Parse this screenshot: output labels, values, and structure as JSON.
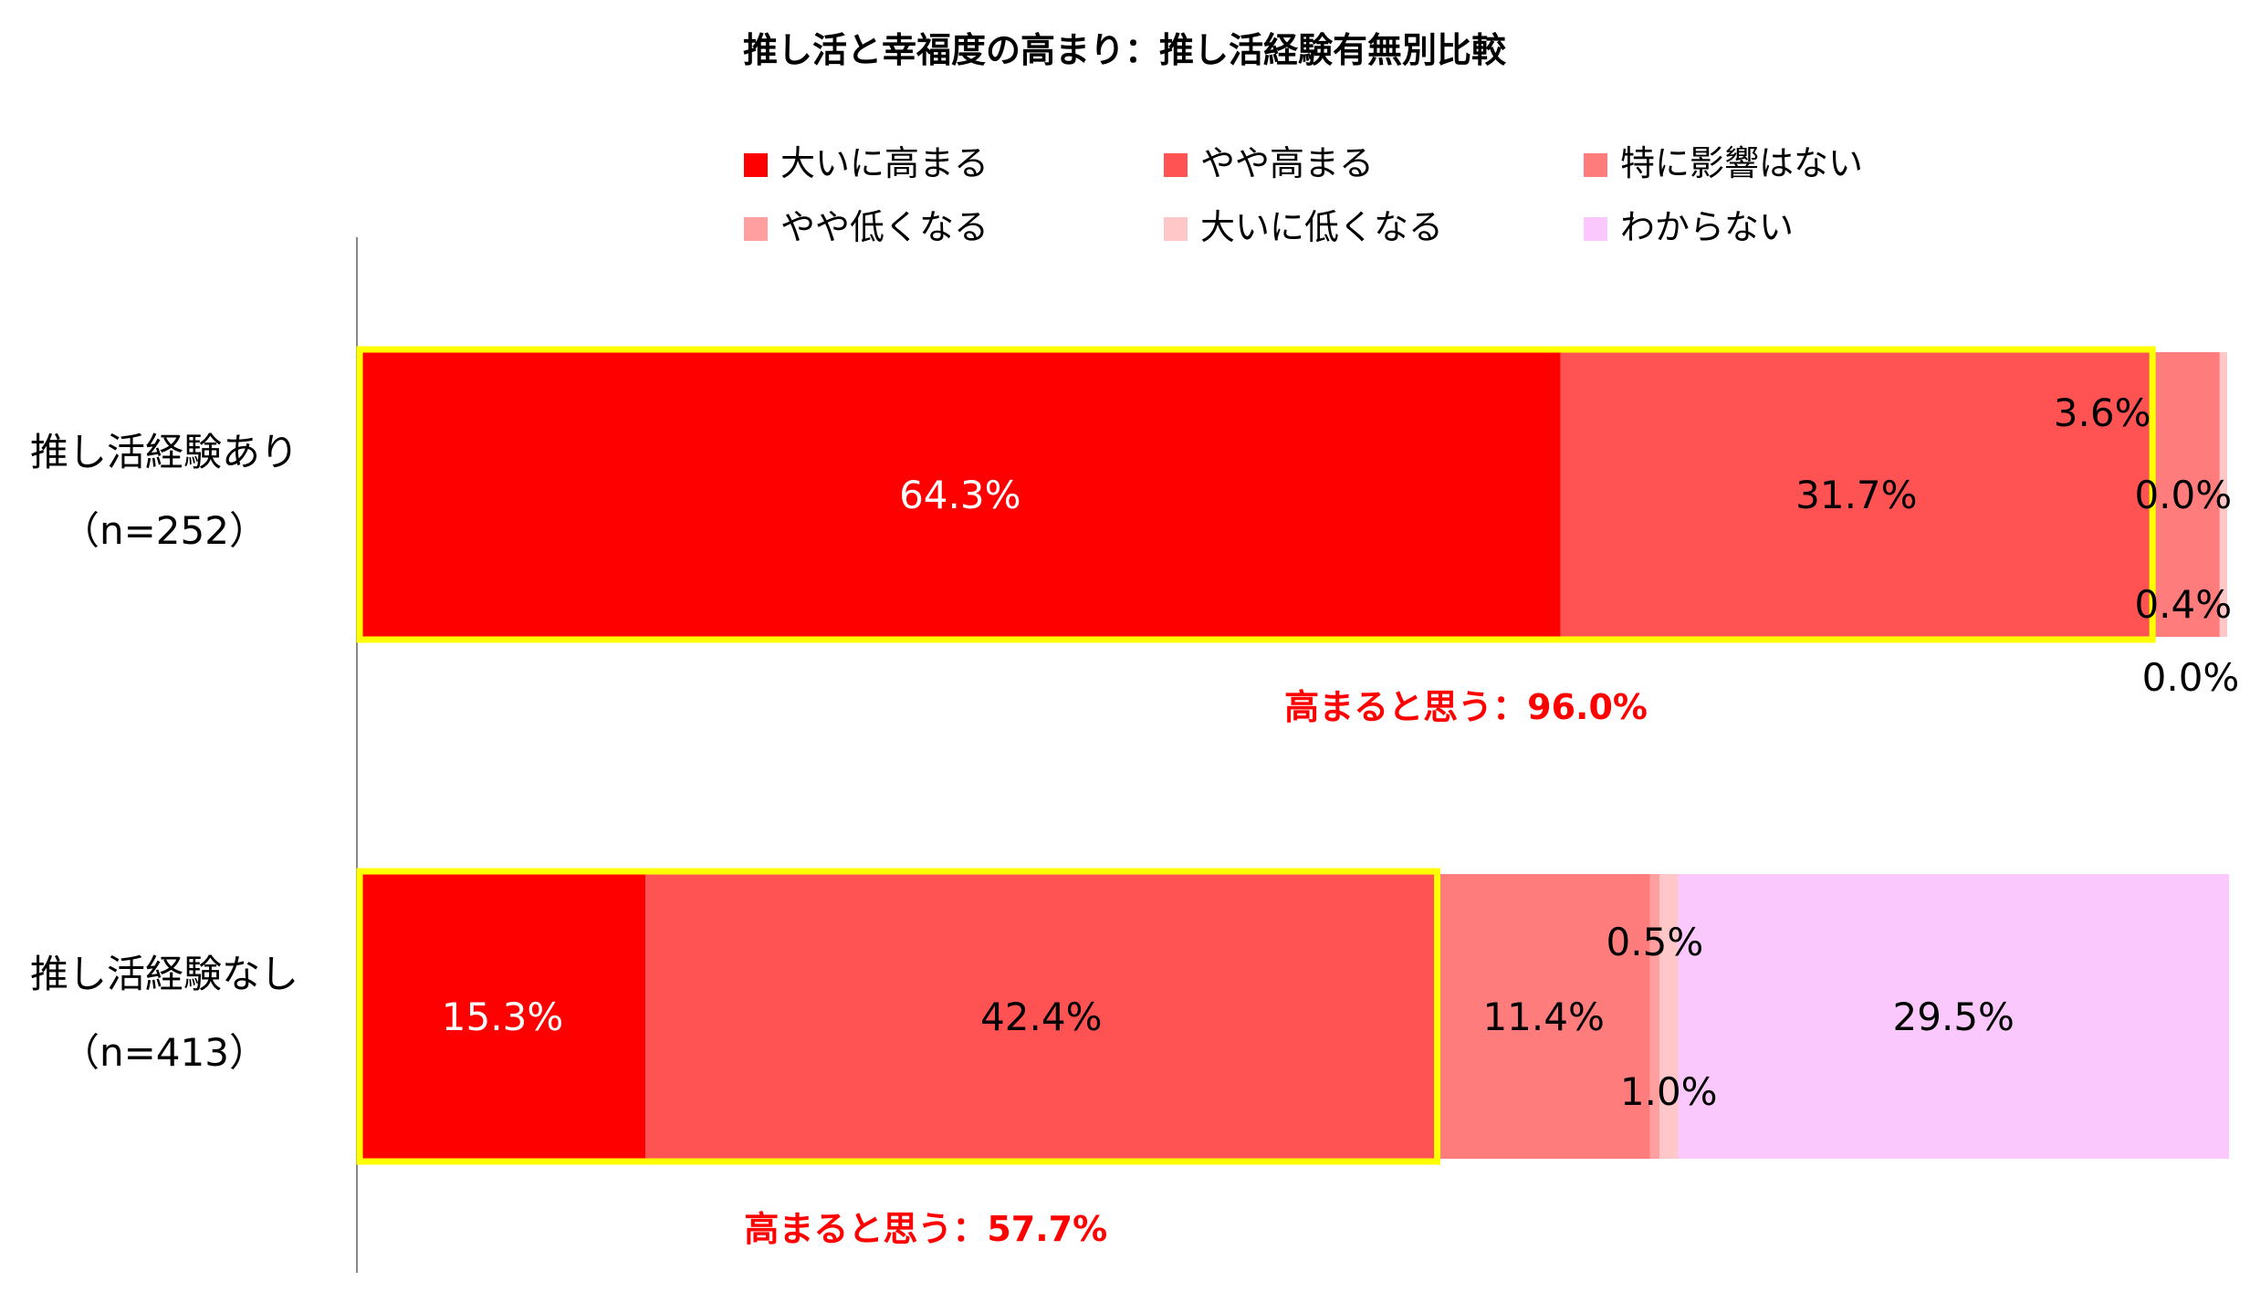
{
  "chart_data": {
    "type": "bar",
    "orientation": "horizontal",
    "stacked": true,
    "title": "推し活と幸福度の高まり：推し活経験有無別比較",
    "legend_position": "top",
    "xlim": [
      0,
      100
    ],
    "categories": [
      {
        "label": "推し活経験あり",
        "n_label": "（n=252）"
      },
      {
        "label": "推し活経験なし",
        "n_label": "（n=413）"
      }
    ],
    "series": [
      {
        "name": "大いに高まる",
        "color": "#ff0000",
        "values": [
          64.3,
          15.3
        ],
        "labels": [
          "64.3%",
          "15.3%"
        ]
      },
      {
        "name": "やや高まる",
        "color": "#ff5252",
        "values": [
          31.7,
          42.4
        ],
        "labels": [
          "31.7%",
          "42.4%"
        ]
      },
      {
        "name": "特に影響はない",
        "color": "#ff7c7c",
        "values": [
          3.6,
          11.4
        ],
        "labels": [
          "3.6%",
          "11.4%"
        ]
      },
      {
        "name": "やや低くなる",
        "color": "#ff9f9f",
        "values": [
          0.0,
          0.5
        ],
        "labels": [
          "0.0%",
          "0.5%"
        ]
      },
      {
        "name": "大いに低くなる",
        "color": "#ffc7c7",
        "values": [
          0.4,
          1.0
        ],
        "labels": [
          "0.4%",
          "1.0%"
        ]
      },
      {
        "name": "わからない",
        "color": "#fbc8fd",
        "values": [
          0.0,
          29.5
        ],
        "labels": [
          "0.0%",
          "29.5%"
        ]
      }
    ],
    "callouts": [
      {
        "text": "高まると思う：96.0%",
        "value": 96.0
      },
      {
        "text": "高まると思う：57.7%",
        "value": 57.7
      }
    ],
    "highlight_color": "#ffff00"
  }
}
